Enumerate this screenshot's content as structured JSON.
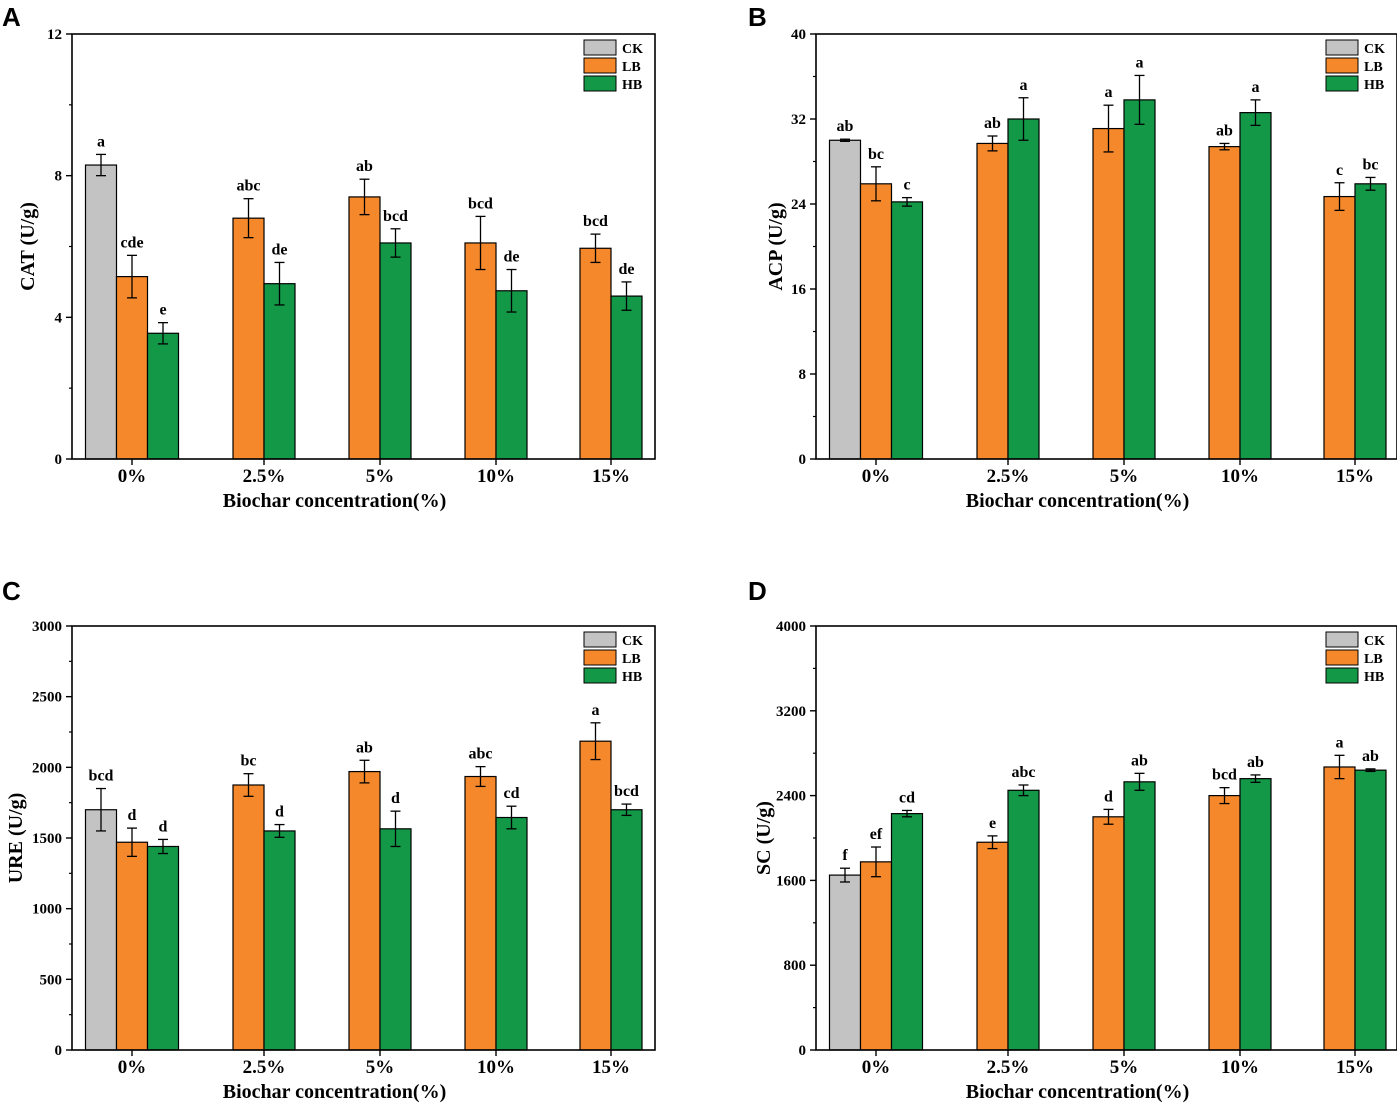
{
  "figure": {
    "colors": {
      "CK": "#c3c3c3",
      "LB": "#f5882b",
      "HB": "#139847",
      "axis": "#000000"
    }
  },
  "chart_data": [
    {
      "panel": "A",
      "type": "bar",
      "xlabel": "Biochar concentration(%)",
      "ylabel": "CAT (U/g)",
      "ylim": [
        0,
        12
      ],
      "yticks": [
        0,
        4,
        8,
        12
      ],
      "legend_position": "top-right",
      "categories": [
        "0%",
        "2.5%",
        "5%",
        "10%",
        "15%"
      ],
      "series": [
        {
          "name": "CK",
          "values": [
            8.3,
            null,
            null,
            null,
            null
          ],
          "errors": [
            0.3,
            null,
            null,
            null,
            null
          ],
          "letters": [
            "a",
            "",
            "",
            "",
            ""
          ]
        },
        {
          "name": "LB",
          "values": [
            5.15,
            6.8,
            7.4,
            6.1,
            5.95
          ],
          "errors": [
            0.6,
            0.55,
            0.5,
            0.75,
            0.4
          ],
          "letters": [
            "cde",
            "abc",
            "ab",
            "bcd",
            "bcd"
          ]
        },
        {
          "name": "HB",
          "values": [
            3.55,
            4.95,
            6.1,
            4.75,
            4.6
          ],
          "errors": [
            0.3,
            0.6,
            0.4,
            0.6,
            0.4
          ],
          "letters": [
            "e",
            "de",
            "bcd",
            "de",
            "de"
          ]
        }
      ]
    },
    {
      "panel": "B",
      "type": "bar",
      "xlabel": "Biochar concentration(%)",
      "ylabel": "ACP (U/g)",
      "ylim": [
        0,
        40
      ],
      "yticks": [
        0,
        8,
        16,
        24,
        32,
        40
      ],
      "legend_position": "top-right",
      "categories": [
        "0%",
        "2.5%",
        "5%",
        "10%",
        "15%"
      ],
      "series": [
        {
          "name": "CK",
          "values": [
            30.0,
            null,
            null,
            null,
            null
          ],
          "errors": [
            0.1,
            null,
            null,
            null,
            null
          ],
          "letters": [
            "ab",
            "",
            "",
            "",
            ""
          ]
        },
        {
          "name": "LB",
          "values": [
            25.9,
            29.7,
            31.1,
            29.4,
            24.7
          ],
          "errors": [
            1.6,
            0.7,
            2.2,
            0.3,
            1.3
          ],
          "letters": [
            "bc",
            "ab",
            "a",
            "ab",
            "c"
          ]
        },
        {
          "name": "HB",
          "values": [
            24.2,
            32.0,
            33.8,
            32.6,
            25.9
          ],
          "errors": [
            0.4,
            2.0,
            2.3,
            1.2,
            0.6
          ],
          "letters": [
            "c",
            "a",
            "a",
            "a",
            "bc"
          ]
        }
      ]
    },
    {
      "panel": "C",
      "type": "bar",
      "xlabel": "Biochar concentration(%)",
      "ylabel": "URE (U/g)",
      "ylim": [
        0,
        3000
      ],
      "yticks": [
        0,
        500,
        1000,
        1500,
        2000,
        2500,
        3000
      ],
      "legend_position": "top-right",
      "categories": [
        "0%",
        "2.5%",
        "5%",
        "10%",
        "15%"
      ],
      "series": [
        {
          "name": "CK",
          "values": [
            1700,
            null,
            null,
            null,
            null
          ],
          "errors": [
            150,
            null,
            null,
            null,
            null
          ],
          "letters": [
            "bcd",
            "",
            "",
            "",
            ""
          ]
        },
        {
          "name": "LB",
          "values": [
            1470,
            1875,
            1970,
            1935,
            2185
          ],
          "errors": [
            100,
            80,
            80,
            70,
            130
          ],
          "letters": [
            "d",
            "bc",
            "ab",
            "abc",
            "a"
          ]
        },
        {
          "name": "HB",
          "values": [
            1440,
            1550,
            1565,
            1645,
            1700
          ],
          "errors": [
            50,
            45,
            125,
            80,
            40
          ],
          "letters": [
            "d",
            "d",
            "d",
            "cd",
            "bcd"
          ]
        }
      ]
    },
    {
      "panel": "D",
      "type": "bar",
      "xlabel": "Biochar concentration(%)",
      "ylabel": "SC (U/g)",
      "ylim": [
        0,
        4000
      ],
      "yticks": [
        0,
        800,
        1600,
        2400,
        3200,
        4000
      ],
      "legend_position": "top-right",
      "categories": [
        "0%",
        "2.5%",
        "5%",
        "10%",
        "15%"
      ],
      "series": [
        {
          "name": "CK",
          "values": [
            1650,
            null,
            null,
            null,
            null
          ],
          "errors": [
            65,
            null,
            null,
            null,
            null
          ],
          "letters": [
            "f",
            "",
            "",
            "",
            ""
          ]
        },
        {
          "name": "LB",
          "values": [
            1775,
            1960,
            2200,
            2400,
            2670
          ],
          "errors": [
            140,
            60,
            70,
            75,
            110
          ],
          "letters": [
            "ef",
            "e",
            "d",
            "bcd",
            "a"
          ]
        },
        {
          "name": "HB",
          "values": [
            2230,
            2450,
            2530,
            2560,
            2640
          ],
          "errors": [
            30,
            50,
            80,
            35,
            12
          ],
          "letters": [
            "cd",
            "abc",
            "ab",
            "ab",
            "ab"
          ]
        }
      ]
    }
  ]
}
